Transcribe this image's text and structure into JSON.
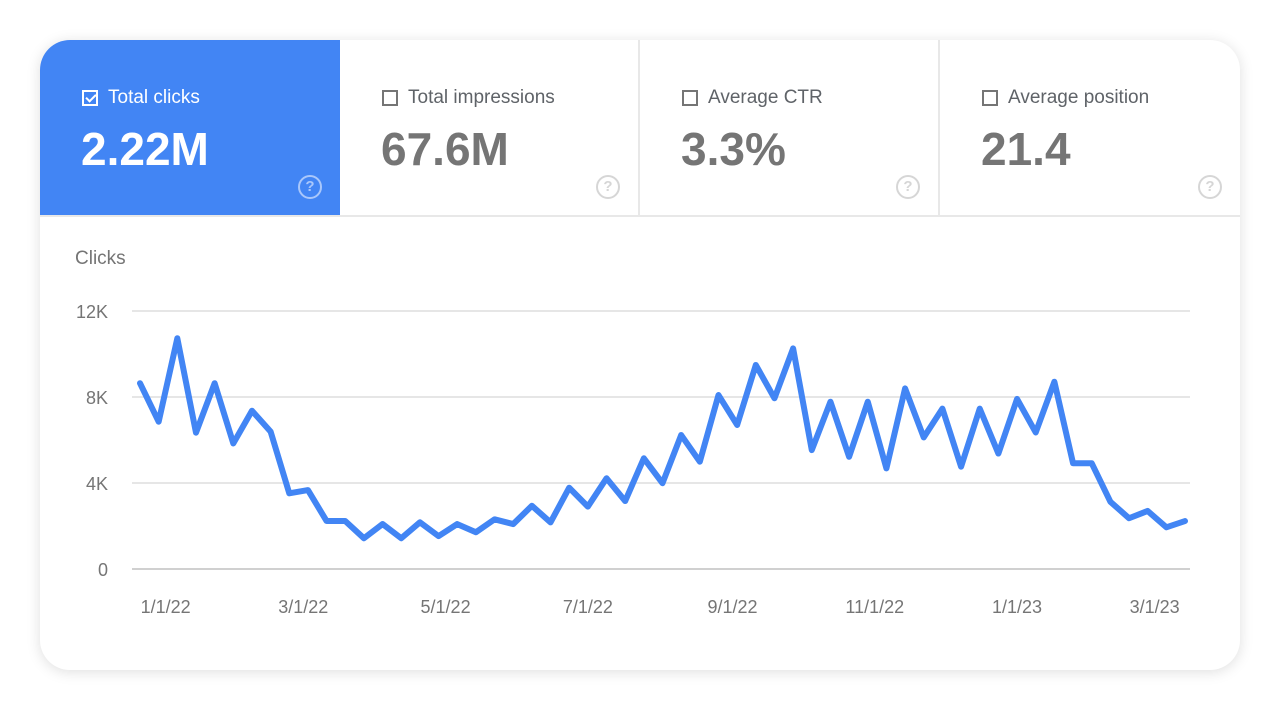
{
  "metrics": [
    {
      "label": "Total clicks",
      "value": "2.22M",
      "checked": true,
      "help_icon": "question-circle-icon"
    },
    {
      "label": "Total impressions",
      "value": "67.6M",
      "checked": false,
      "help_icon": "question-circle-icon"
    },
    {
      "label": "Average CTR",
      "value": "3.3%",
      "checked": false,
      "help_icon": "question-circle-icon"
    },
    {
      "label": "Average position",
      "value": "21.4",
      "checked": false,
      "help_icon": "question-circle-icon"
    }
  ],
  "colors": {
    "accent": "#4285f4",
    "line": "#4285f4",
    "grid": "#e6e6e6",
    "text": "#757575"
  },
  "chart_data": {
    "type": "line",
    "ylabel": "Clicks",
    "ylim": [
      0,
      12000
    ],
    "y_ticks": [
      {
        "value": 0,
        "label": "0"
      },
      {
        "value": 4000,
        "label": "4K"
      },
      {
        "value": 8000,
        "label": "8K"
      },
      {
        "value": 12000,
        "label": "12K"
      }
    ],
    "x_ticks": [
      {
        "date": "2022-01-01",
        "label": "1/1/22"
      },
      {
        "date": "2022-03-01",
        "label": "3/1/22"
      },
      {
        "date": "2022-05-01",
        "label": "5/1/22"
      },
      {
        "date": "2022-07-01",
        "label": "7/1/22"
      },
      {
        "date": "2022-09-01",
        "label": "9/1/22"
      },
      {
        "date": "2022-11-01",
        "label": "11/1/22"
      },
      {
        "date": "2023-01-01",
        "label": "1/1/23"
      },
      {
        "date": "2023-03-01",
        "label": "3/1/23"
      }
    ],
    "xlim": [
      "2021-12-21",
      "2023-03-14"
    ],
    "grid": true,
    "series": [
      {
        "values": [
          8640,
          6850,
          10730,
          6340,
          8640,
          5840,
          7360,
          6390,
          3520,
          3670,
          2230,
          2230,
          1430,
          2090,
          1430,
          2170,
          1530,
          2090,
          1710,
          2310,
          2090,
          2940,
          2170,
          3780,
          2900,
          4220,
          3160,
          5150,
          3990,
          6230,
          4990,
          8090,
          6700,
          9490,
          7940,
          10260,
          5530,
          7780,
          5220,
          7780,
          4680,
          8400,
          6120,
          7460,
          4760,
          7460,
          5370,
          7910,
          6350,
          8710,
          4920,
          4920,
          3130,
          2360,
          2700,
          1940,
          2230
        ]
      }
    ]
  }
}
